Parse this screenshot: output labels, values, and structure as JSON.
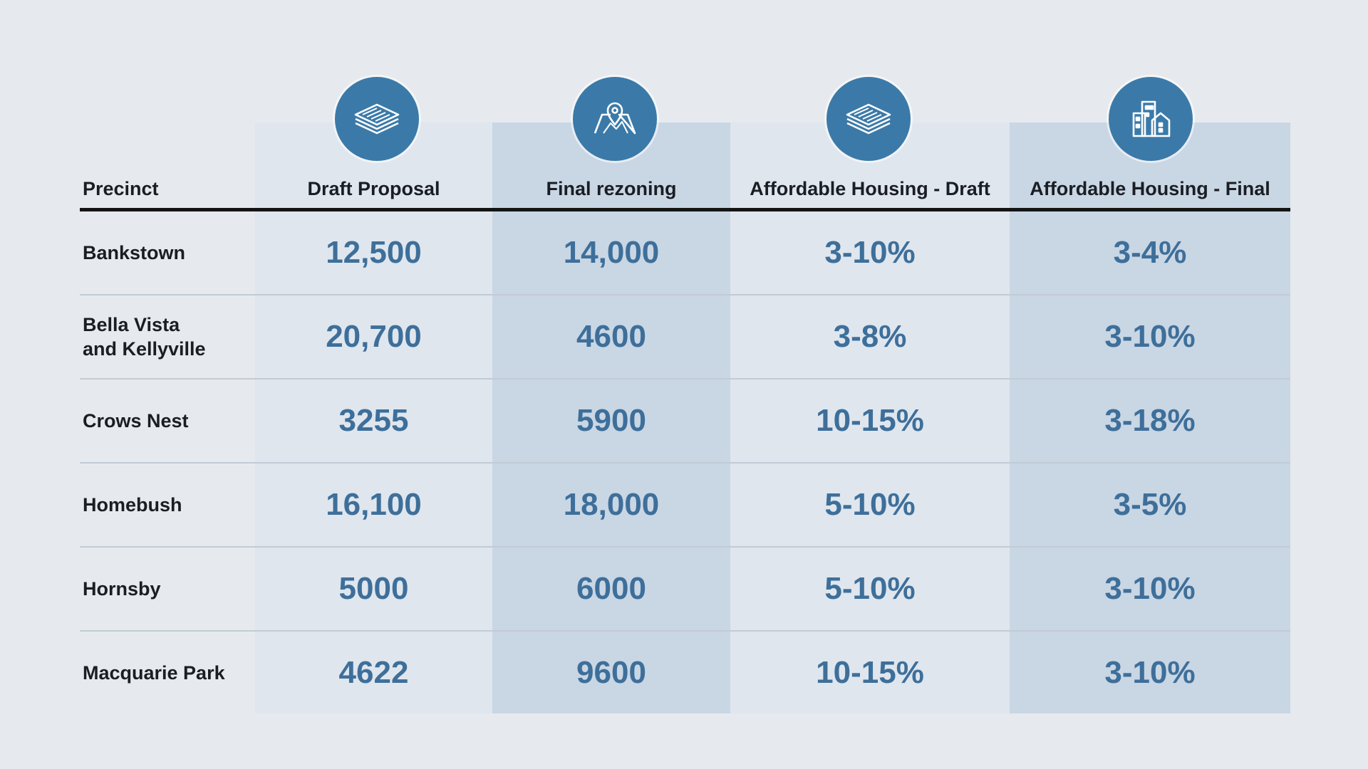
{
  "chart_data": {
    "type": "table",
    "columns": [
      "Precinct",
      "Draft Proposal",
      "Final rezoning",
      "Affordable Housing - Draft",
      "Affordable Housing - Final"
    ],
    "icons": [
      "documents-stack-icon",
      "map-pin-icon",
      "documents-stack-icon",
      "buildings-icon"
    ],
    "rows": [
      {
        "precinct": "Bankstown",
        "draft": "12,500",
        "final": "14,000",
        "ah_draft": "3-10%",
        "ah_final": "3-4%"
      },
      {
        "precinct": "Bella Vista\nand Kellyville",
        "draft": "20,700",
        "final": "4600",
        "ah_draft": "3-8%",
        "ah_final": "3-10%"
      },
      {
        "precinct": "Crows Nest",
        "draft": "3255",
        "final": "5900",
        "ah_draft": "10-15%",
        "ah_final": "3-18%"
      },
      {
        "precinct": "Homebush",
        "draft": "16,100",
        "final": "18,000",
        "ah_draft": "5-10%",
        "ah_final": "3-5%"
      },
      {
        "precinct": "Hornsby",
        "draft": "5000",
        "final": "6000",
        "ah_draft": "5-10%",
        "ah_final": "3-10%"
      },
      {
        "precinct": "Macquarie Park",
        "draft": "4622",
        "final": "9600",
        "ah_draft": "10-15%",
        "ah_final": "3-10%"
      }
    ]
  },
  "colors": {
    "background": "#e6eaee",
    "band_light": "#dfe6ee",
    "band_dark": "#c9d6e4",
    "accent": "#3b7aa8",
    "value_text": "#3e6f9a",
    "header_text": "#1a1e24"
  }
}
